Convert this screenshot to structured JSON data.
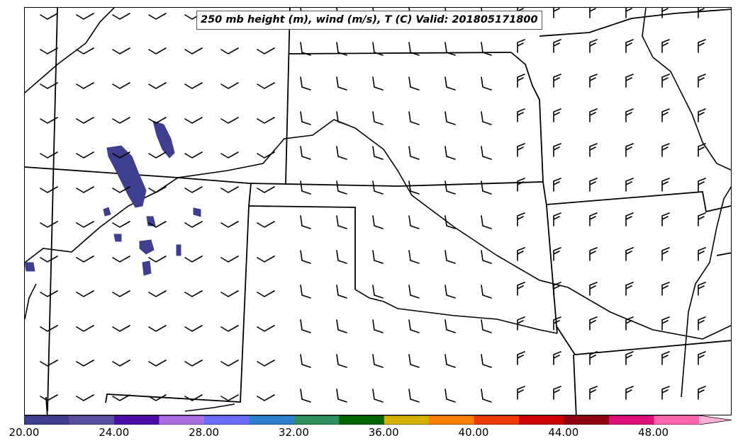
{
  "title": "250 mb height (m), wind (m/s), T (C) Valid: 201805171800",
  "colorbar": {
    "tick_labels": [
      "20.00",
      "24.00",
      "28.00",
      "32.00",
      "36.00",
      "40.00",
      "44.00",
      "48.00"
    ],
    "min": 20,
    "max": 51.5,
    "colors": [
      "#3f3f8f",
      "#5a4f9f",
      "#4b0fa8",
      "#a86ee0",
      "#6b6bff",
      "#2f7fcf",
      "#2e8f5f",
      "#006400",
      "#d4b000",
      "#ff7f00",
      "#ee3a00",
      "#cc0000",
      "#8f0010",
      "#e0107a",
      "#ff66b0",
      "#ffb0d8"
    ]
  },
  "wind_barbs": "westerly-southwesterly barbs over the Great Plains",
  "shading_color": "#3f3f8f"
}
